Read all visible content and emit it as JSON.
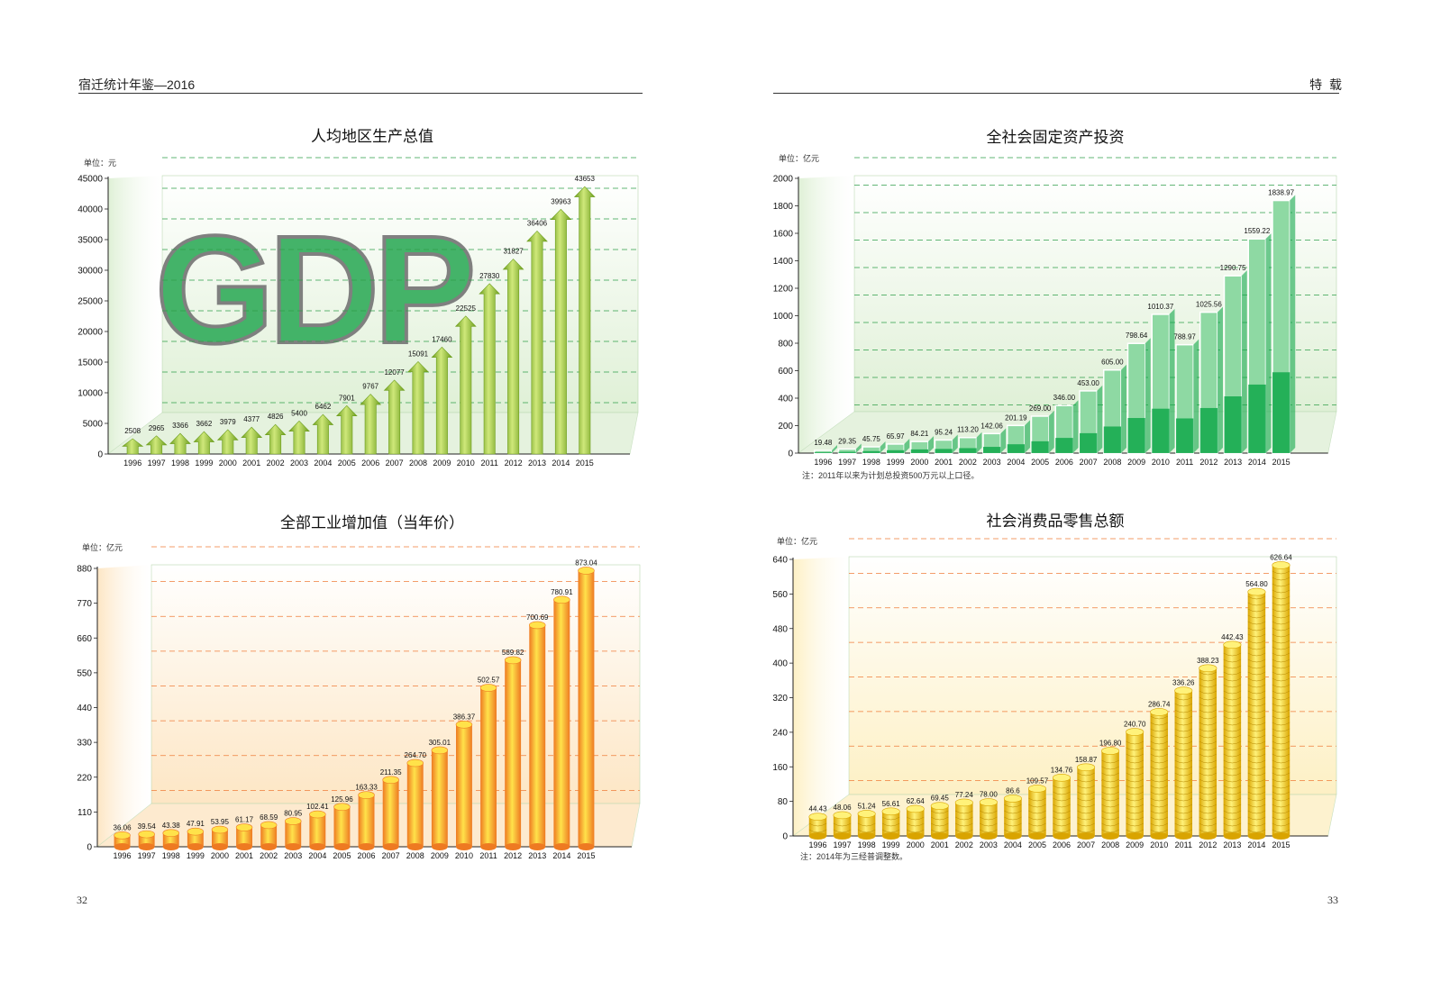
{
  "header": {
    "left_title": "宿迁统计年鉴—2016",
    "right_title": "特  载"
  },
  "footer": {
    "left_page": "32",
    "right_page": "33"
  },
  "charts": [
    {
      "key": "gdp_pc",
      "title": "人均地区生产总值",
      "unit": "单位：元",
      "note": "",
      "watermark": "GDP",
      "colors": {
        "bar_light": "#cfe87a",
        "bar_dark": "#6d9e1e",
        "panel": "#dff0d6",
        "grid": "#2f9e49"
      }
    },
    {
      "key": "fixed_inv",
      "title": "全社会固定资产投资",
      "unit": "单位：亿元",
      "note": "注：2011年以来为计划总投资500万元以上口径。",
      "colors": {
        "bar_light": "#8ed9a3",
        "bar_dark": "#12a84b",
        "panel": "#dff0d6",
        "grid": "#2f9e49"
      }
    },
    {
      "key": "industry",
      "title": "全部工业增加值（当年价）",
      "unit": "单位：亿元",
      "note": "",
      "colors": {
        "bar_light": "#ffe24a",
        "bar_dark": "#ee7a22",
        "panel": "#fde6c4",
        "grid": "#ef7d3a"
      }
    },
    {
      "key": "retail",
      "title": "社会消费品零售总额",
      "unit": "单位：亿元",
      "note": "注：2014年为三经普调整数。",
      "colors": {
        "bar_light": "#fff27a",
        "bar_dark": "#d9a400",
        "panel": "#fdf0c4",
        "grid": "#ef7d3a"
      }
    }
  ],
  "chart_data": [
    {
      "type": "bar",
      "title": "人均地区生产总值",
      "ylabel": "单位：元",
      "categories": [
        "1996",
        "1997",
        "1998",
        "1999",
        "2000",
        "2001",
        "2002",
        "2003",
        "2004",
        "2005",
        "2006",
        "2007",
        "2008",
        "2009",
        "2010",
        "2011",
        "2012",
        "2013",
        "2014",
        "2015"
      ],
      "values": [
        2508,
        2965,
        3366,
        3662,
        3979,
        4377,
        4826,
        5400,
        6462,
        7901,
        9767,
        12077,
        15091,
        17460,
        22525,
        27830,
        31827,
        36406,
        39963,
        43653
      ],
      "value_labels": [
        "2508",
        "2965",
        "3366",
        "3662",
        "3979",
        "4377",
        "4826",
        "5400",
        "6462",
        "7901",
        "9767",
        "12077",
        "15091",
        "17460",
        "22525",
        "27830",
        "31827",
        "36406",
        "39963",
        "43653"
      ],
      "yticks": [
        "0",
        "5000",
        "10000",
        "15000",
        "20000",
        "25000",
        "30000",
        "35000",
        "40000",
        "45000"
      ],
      "ylim": [
        0,
        45000
      ],
      "grid": true
    },
    {
      "type": "bar",
      "title": "全社会固定资产投资",
      "ylabel": "单位：亿元",
      "categories": [
        "1996",
        "1997",
        "1998",
        "1999",
        "2000",
        "2001",
        "2002",
        "2003",
        "2004",
        "2005",
        "2006",
        "2007",
        "2008",
        "2009",
        "2010",
        "2011",
        "2012",
        "2013",
        "2014",
        "2015"
      ],
      "values": [
        19.48,
        29.35,
        45.75,
        65.97,
        84.21,
        95.24,
        113.2,
        142.06,
        201.19,
        269.0,
        346.0,
        453.0,
        605.0,
        798.64,
        1010.37,
        788.97,
        1025.56,
        1290.75,
        1559.22,
        1838.97
      ],
      "value_labels": [
        "19.48",
        "29.35",
        "45.75",
        "65.97",
        "84.21",
        "95.24",
        "113.20",
        "142.06",
        "201.19",
        "269.00",
        "346.00",
        "453.00",
        "605.00",
        "798.64",
        "1010.37",
        "788.97",
        "1025.56",
        "1290.75",
        "1559.22",
        "1838.97"
      ],
      "yticks": [
        "0",
        "200",
        "400",
        "600",
        "800",
        "1000",
        "1200",
        "1400",
        "1600",
        "1800",
        "2000"
      ],
      "ylim": [
        0,
        2000
      ],
      "grid": true
    },
    {
      "type": "bar",
      "title": "全部工业增加值（当年价）",
      "ylabel": "单位：亿元",
      "categories": [
        "1996",
        "1997",
        "1998",
        "1999",
        "2000",
        "2001",
        "2002",
        "2003",
        "2004",
        "2005",
        "2006",
        "2007",
        "2008",
        "2009",
        "2010",
        "2011",
        "2012",
        "2013",
        "2014",
        "2015"
      ],
      "values": [
        36.06,
        39.54,
        43.38,
        47.91,
        53.95,
        61.17,
        68.59,
        80.95,
        102.41,
        125.96,
        163.33,
        211.35,
        264.7,
        305.01,
        386.37,
        502.57,
        589.82,
        700.69,
        780.91,
        873.04
      ],
      "value_labels": [
        "36.06",
        "39.54",
        "43.38",
        "47.91",
        "53.95",
        "61.17",
        "68.59",
        "80.95",
        "102.41",
        "125.96",
        "163.33",
        "211.35",
        "264.70",
        "305.01",
        "386.37",
        "502.57",
        "589.82",
        "700.69",
        "780.91",
        "873.04"
      ],
      "yticks": [
        "0",
        "110",
        "220",
        "330",
        "440",
        "550",
        "660",
        "770",
        "880"
      ],
      "ylim": [
        0,
        880
      ],
      "grid": true
    },
    {
      "type": "bar",
      "title": "社会消费品零售总额",
      "ylabel": "单位：亿元",
      "categories": [
        "1996",
        "1997",
        "1998",
        "1999",
        "2000",
        "2001",
        "2002",
        "2003",
        "2004",
        "2005",
        "2006",
        "2007",
        "2008",
        "2009",
        "2010",
        "2011",
        "2012",
        "2013",
        "2014",
        "2015"
      ],
      "values": [
        44.43,
        48.06,
        51.24,
        56.61,
        62.64,
        69.45,
        77.24,
        78.0,
        86.6,
        109.57,
        134.76,
        158.87,
        196.8,
        240.7,
        286.74,
        336.26,
        388.23,
        442.43,
        564.8,
        626.64
      ],
      "value_labels": [
        "44.43",
        "48.06",
        "51.24",
        "56.61",
        "62.64",
        "69.45",
        "77.24",
        "78.00",
        "86.6",
        "109.57",
        "134.76",
        "158.87",
        "196.80",
        "240.70",
        "286.74",
        "336.26",
        "388.23",
        "442.43",
        "564.80",
        "626.64"
      ],
      "yticks": [
        "0",
        "80",
        "160",
        "240",
        "320",
        "400",
        "480",
        "560",
        "640"
      ],
      "ylim": [
        0,
        640
      ],
      "grid": true
    }
  ]
}
